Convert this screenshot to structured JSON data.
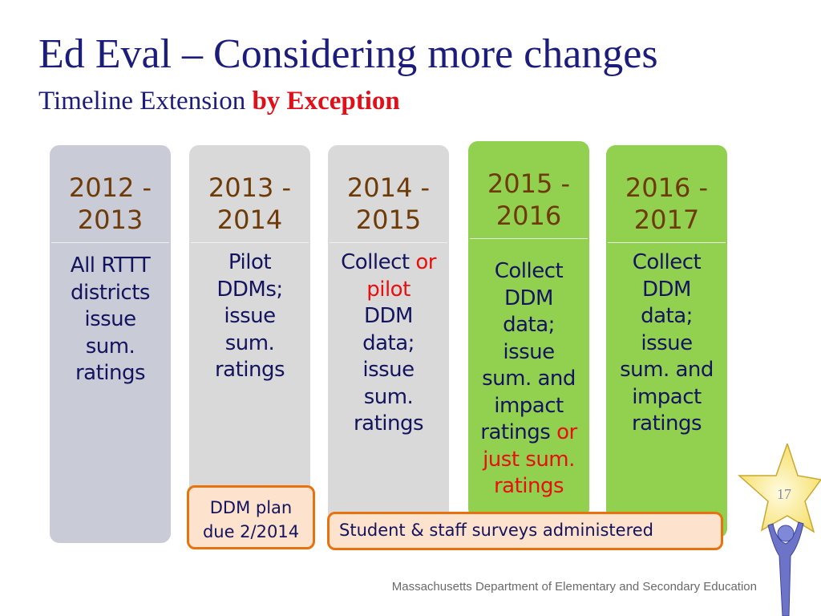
{
  "title": "Ed Eval – Considering more changes",
  "subtitle": {
    "text": "Timeline Extension ",
    "highlight": "by Exception"
  },
  "colors": {
    "navy": "#1c1c7a",
    "red": "#e0101a",
    "green": "#92d050",
    "gray": "#d9d9d9",
    "slate": "#c9cbd7",
    "orange": "#e7720e",
    "peach": "#fde3cd"
  },
  "columns": [
    {
      "year": [
        "2012 -",
        "2013"
      ],
      "lines": [
        [
          {
            "t": "All RTTT"
          }
        ],
        [
          {
            "t": "districts"
          }
        ],
        [
          {
            "t": "issue"
          }
        ],
        [
          {
            "t": "sum."
          }
        ],
        [
          {
            "t": "ratings"
          }
        ]
      ]
    },
    {
      "year": [
        "2013 -",
        "2014"
      ],
      "lines": [
        [
          {
            "t": "Pilot"
          }
        ],
        [
          {
            "t": "DDMs;"
          }
        ],
        [
          {
            "t": "issue"
          }
        ],
        [
          {
            "t": "sum."
          }
        ],
        [
          {
            "t": "ratings"
          }
        ]
      ]
    },
    {
      "year": [
        "2014 -",
        "2015"
      ],
      "lines": [
        [
          {
            "t": "Collect "
          },
          {
            "t": "or",
            "red": true
          }
        ],
        [
          {
            "t": "pilot",
            "red": true
          }
        ],
        [
          {
            "t": "DDM"
          }
        ],
        [
          {
            "t": "data;"
          }
        ],
        [
          {
            "t": "issue"
          }
        ],
        [
          {
            "t": "sum."
          }
        ],
        [
          {
            "t": "ratings"
          }
        ]
      ]
    },
    {
      "year": [
        "2015 -",
        "2016"
      ],
      "lines": [
        [
          {
            "t": "Collect"
          }
        ],
        [
          {
            "t": "DDM"
          }
        ],
        [
          {
            "t": "data;"
          }
        ],
        [
          {
            "t": "issue"
          }
        ],
        [
          {
            "t": "sum. and"
          }
        ],
        [
          {
            "t": "impact"
          }
        ],
        [
          {
            "t": "ratings "
          },
          {
            "t": "or",
            "red": true
          }
        ],
        [
          {
            "t": "just sum.",
            "red": true
          }
        ],
        [
          {
            "t": "ratings",
            "red": true
          }
        ]
      ]
    },
    {
      "year": [
        "2016 -",
        "2017"
      ],
      "lines": [
        [
          {
            "t": "Collect"
          }
        ],
        [
          {
            "t": "DDM"
          }
        ],
        [
          {
            "t": "data;"
          }
        ],
        [
          {
            "t": "issue"
          }
        ],
        [
          {
            "t": "sum. and"
          }
        ],
        [
          {
            "t": "impact"
          }
        ],
        [
          {
            "t": "ratings"
          }
        ]
      ]
    }
  ],
  "callouts": {
    "ddm_plan": [
      "DDM plan",
      "due 2/2014"
    ],
    "surveys": "Student & staff surveys administered"
  },
  "page_number": "17",
  "footer": "Massachusetts Department of Elementary and Secondary Education",
  "icons": {
    "logo": "star-person-icon"
  }
}
